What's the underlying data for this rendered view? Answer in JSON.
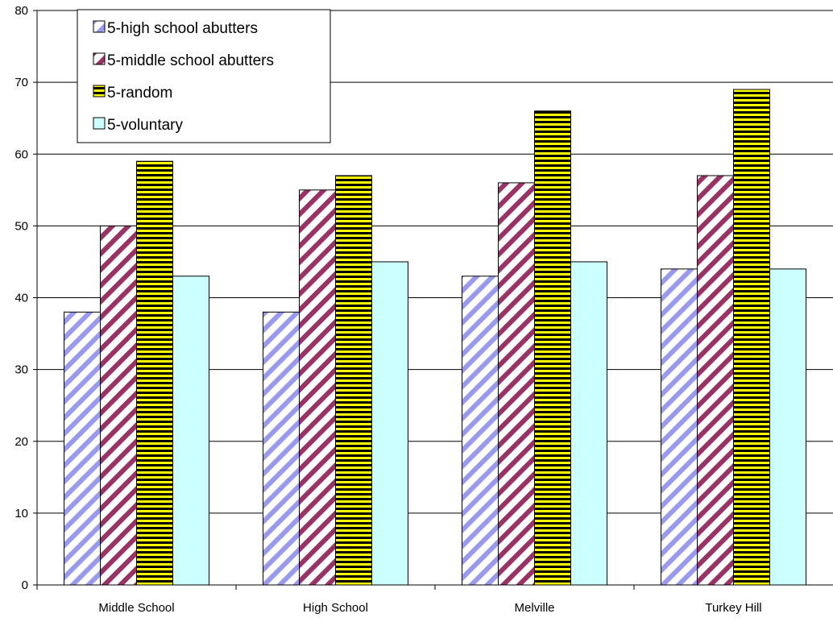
{
  "chart_data": {
    "type": "bar",
    "title": "",
    "xlabel": "",
    "ylabel": "",
    "ylim": [
      0,
      80
    ],
    "yticks": [
      0,
      10,
      20,
      30,
      40,
      50,
      60,
      70,
      80
    ],
    "grid": true,
    "legend_position": "top-left",
    "categories": [
      "Middle School",
      "High School",
      "Melville",
      "Turkey Hill"
    ],
    "series": [
      {
        "name": "5-high school abutters",
        "values": [
          38,
          38,
          43,
          44
        ],
        "pattern": "diagonal-stripes-light",
        "colors": {
          "stripe": "#9999ee",
          "background": "#ffffff"
        }
      },
      {
        "name": "5-middle school abutters",
        "values": [
          50,
          55,
          56,
          57
        ],
        "pattern": "diagonal-stripes-dark",
        "colors": {
          "stripe": "#993366",
          "background": "#ffffff"
        }
      },
      {
        "name": "5-random",
        "values": [
          59,
          57,
          66,
          69
        ],
        "pattern": "horizontal-stripes",
        "colors": {
          "stripe": "#000000",
          "background": "#ffff00"
        }
      },
      {
        "name": "5-voluntary",
        "values": [
          43,
          45,
          45,
          44
        ],
        "pattern": "solid",
        "colors": {
          "fill": "#ccffff"
        }
      }
    ]
  }
}
